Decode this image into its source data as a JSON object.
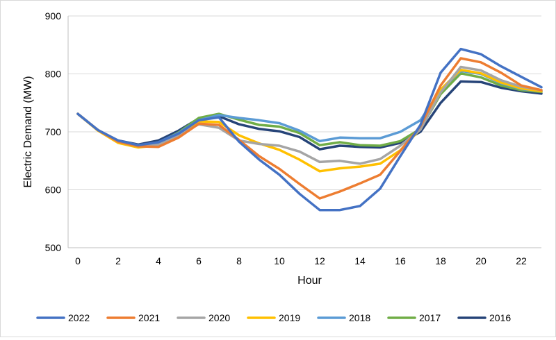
{
  "chart_data": {
    "type": "line",
    "title": "",
    "xlabel": "Hour",
    "ylabel": "Electric Demand  (MW)",
    "xlim": [
      0,
      23
    ],
    "ylim": [
      500,
      900
    ],
    "x_ticks": [
      0,
      2,
      4,
      6,
      8,
      10,
      12,
      14,
      16,
      18,
      20,
      22
    ],
    "y_ticks": [
      500,
      600,
      700,
      800,
      900
    ],
    "grid": "horizontal",
    "legend_position": "bottom",
    "x": [
      0,
      1,
      2,
      3,
      4,
      5,
      6,
      7,
      8,
      9,
      10,
      11,
      12,
      13,
      14,
      15,
      16,
      17,
      18,
      19,
      20,
      21,
      22,
      23
    ],
    "series": [
      {
        "name": "2022",
        "color": "#4472c4",
        "values": [
          731,
          703,
          685,
          677,
          682,
          697,
          720,
          725,
          683,
          652,
          626,
          593,
          565,
          565,
          572,
          602,
          658,
          712,
          802,
          843,
          834,
          813,
          795,
          777
        ]
      },
      {
        "name": "2021",
        "color": "#ed7d31",
        "values": [
          731,
          703,
          683,
          675,
          674,
          690,
          714,
          712,
          686,
          658,
          636,
          610,
          585,
          597,
          611,
          626,
          667,
          710,
          780,
          827,
          820,
          802,
          780,
          772
        ]
      },
      {
        "name": "2020",
        "color": "#a5a5a5",
        "values": [
          731,
          703,
          683,
          675,
          678,
          694,
          713,
          707,
          685,
          679,
          676,
          666,
          648,
          650,
          645,
          653,
          676,
          704,
          768,
          812,
          806,
          789,
          778,
          772
        ]
      },
      {
        "name": "2019",
        "color": "#ffc000",
        "values": [
          731,
          702,
          681,
          673,
          677,
          693,
          718,
          717,
          694,
          680,
          669,
          652,
          632,
          637,
          640,
          645,
          668,
          705,
          773,
          807,
          801,
          785,
          775,
          770
        ]
      },
      {
        "name": "2018",
        "color": "#5b9bd5",
        "values": [
          731,
          703,
          684,
          676,
          682,
          698,
          720,
          729,
          724,
          720,
          715,
          702,
          684,
          690,
          689,
          689,
          700,
          720,
          773,
          805,
          800,
          784,
          774,
          770
        ]
      },
      {
        "name": "2017",
        "color": "#70ad47",
        "values": [
          731,
          703,
          684,
          677,
          681,
          699,
          724,
          731,
          721,
          712,
          709,
          698,
          677,
          682,
          677,
          676,
          684,
          705,
          765,
          801,
          794,
          780,
          772,
          769
        ]
      },
      {
        "name": "2016",
        "color": "#264478",
        "values": [
          731,
          703,
          685,
          678,
          685,
          702,
          723,
          727,
          713,
          705,
          701,
          691,
          670,
          676,
          674,
          673,
          681,
          700,
          750,
          787,
          786,
          776,
          770,
          766
        ]
      }
    ]
  }
}
